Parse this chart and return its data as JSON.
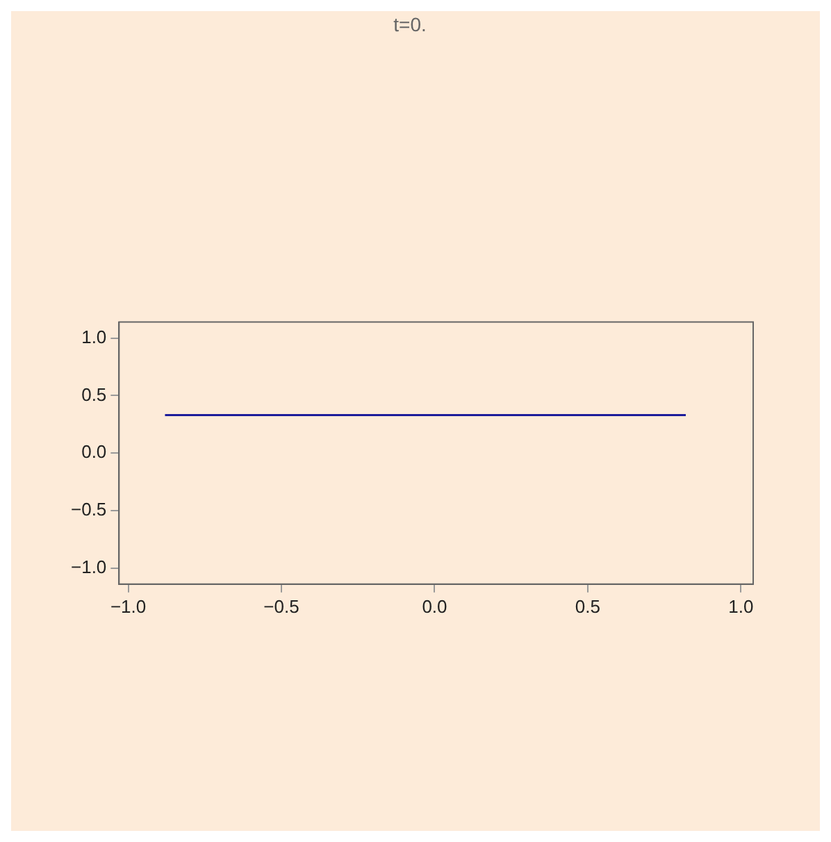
{
  "chart_data": {
    "type": "line",
    "title": "t=0.",
    "x": [
      -0.88,
      0.82
    ],
    "series": [
      {
        "color": "#1c1c9a",
        "values": [
          0.33,
          0.33
        ]
      }
    ],
    "xlim": [
      -1.03,
      1.04
    ],
    "ylim": [
      -1.14,
      1.14
    ],
    "xticks": [
      {
        "value": -1,
        "label": "−1.0"
      },
      {
        "value": -0.5,
        "label": "−0.5"
      },
      {
        "value": 0,
        "label": "0.0"
      },
      {
        "value": 0.5,
        "label": "0.5"
      },
      {
        "value": 1,
        "label": "1.0"
      }
    ],
    "yticks": [
      {
        "value": -1,
        "label": "−1.0"
      },
      {
        "value": -0.5,
        "label": "−0.5"
      },
      {
        "value": 0,
        "label": "0.0"
      },
      {
        "value": 0.5,
        "label": "0.5"
      },
      {
        "value": 1,
        "label": "1.0"
      }
    ],
    "grid": false,
    "legend": false,
    "marker": "none",
    "line_style": "solid"
  }
}
